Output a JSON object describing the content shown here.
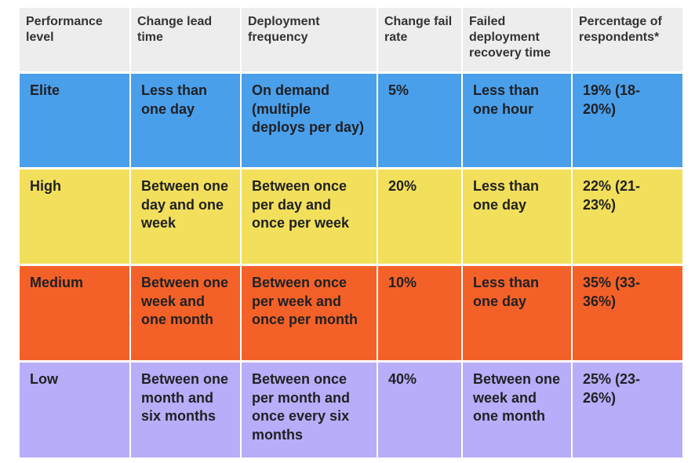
{
  "table": {
    "header": [
      "Performance level",
      "Change lead time",
      "Deployment frequency",
      "Change fail rate",
      "Failed deployment recovery time",
      "Percentage of respondents*"
    ],
    "rows": [
      [
        "Elite",
        "Less than one day",
        "On demand (multiple deploys per day)",
        "5%",
        "Less than one hour",
        "19% (18-20%)"
      ],
      [
        "High",
        "Between one day and one week",
        "Between once per day and once per week",
        "20%",
        "Less than one day",
        "22% (21-23%)"
      ],
      [
        "Medium",
        "Between one week and one month",
        "Between once per week and once per month",
        "10%",
        "Less than one day",
        "35% (33-36%)"
      ],
      [
        "Low",
        "Between one month and six months",
        "Between once per month and once every six months",
        "40%",
        "Between one week and one month",
        "25% (23-26%)"
      ]
    ]
  }
}
